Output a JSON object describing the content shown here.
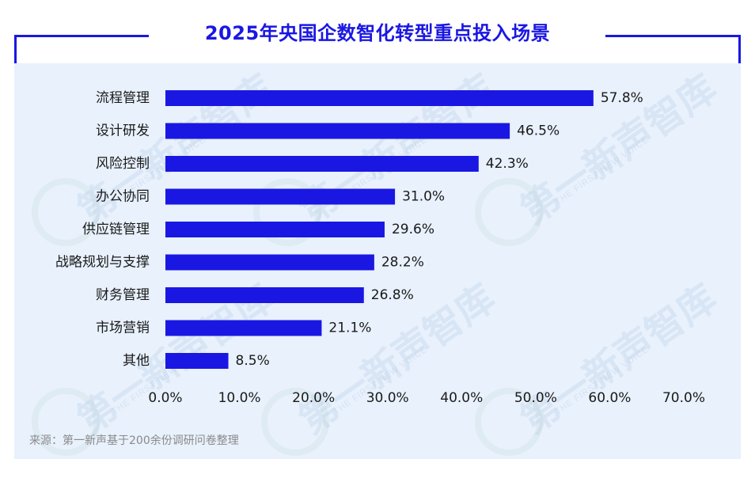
{
  "title": "2025年央国企数智化转型重点投入场景",
  "source": "来源：第一新声基于200余份调研问卷整理",
  "watermark": {
    "brand": "第一新声智库",
    "tagline": "THE FIRST NEW VOICE"
  },
  "colors": {
    "bar": "#1a17e3",
    "title": "#1a17e3",
    "panel": "#e8f1fc"
  },
  "chart_data": {
    "type": "bar",
    "orientation": "horizontal",
    "title": "2025年央国企数智化转型重点投入场景",
    "categories": [
      "流程管理",
      "设计研发",
      "风险控制",
      "办公协同",
      "供应链管理",
      "战略规划与支撑",
      "财务管理",
      "市场营销",
      "其他"
    ],
    "values": [
      57.8,
      46.5,
      42.3,
      31.0,
      29.6,
      28.2,
      26.8,
      21.1,
      8.5
    ],
    "value_labels": [
      "57.8%",
      "46.5%",
      "42.3%",
      "31.0%",
      "29.6%",
      "28.2%",
      "26.8%",
      "21.1%",
      "8.5%"
    ],
    "xlim": [
      0,
      70
    ],
    "xticks": [
      0,
      10,
      20,
      30,
      40,
      50,
      60,
      70
    ],
    "xtick_labels": [
      "0.0%",
      "10.0%",
      "20.0%",
      "30.0%",
      "40.0%",
      "50.0%",
      "60.0%",
      "70.0%"
    ],
    "xlabel": "",
    "ylabel": "",
    "grid": false,
    "legend": "none"
  }
}
